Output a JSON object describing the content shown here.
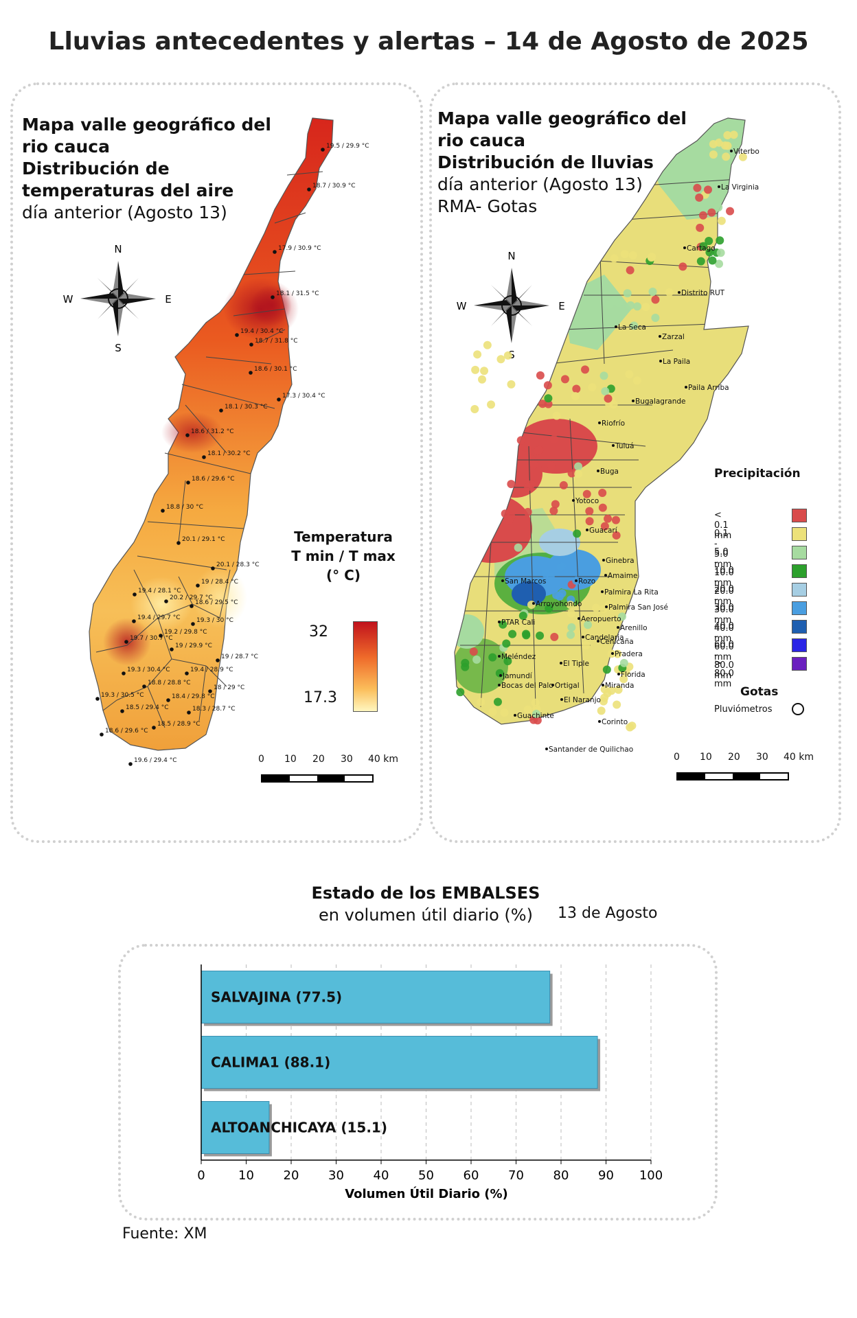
{
  "title": "Lluvias antecedentes y alertas – 14 de Agosto de 2025",
  "temp_panel": {
    "title_l1": "Mapa valle geográfico del",
    "title_l2": "rio cauca",
    "title_l3": "Distribución de",
    "title_l4": "temperaturas del aire",
    "subtitle": "día anterior (Agosto 13)",
    "compass": {
      "n": "N",
      "s": "S",
      "e": "E",
      "w": "W"
    },
    "legend": {
      "title_l1": "Temperatura",
      "title_l2": "T min / T max",
      "title_l3": "(° C)",
      "max": "32",
      "min": "17.3",
      "color_high": "#d7191c",
      "color_mid": "#fdae61",
      "color_low": "#ffffbf"
    },
    "scale": {
      "labels": [
        "0",
        "10",
        "20",
        "30",
        "40 km"
      ]
    },
    "stations": [
      "19.5 / 29.9 °C",
      "18.7 / 30.9 °C",
      "17.9 / 30.9 °C",
      "18.1 / 31.5 °C",
      "19.4 / 30.4 °C",
      "18.7 / 31.8 °C",
      "18.6 / 30.1 °C",
      "17.3 / 30.4 °C",
      "18.1 / 30.3 °C",
      "18.6 / 31.2 °C",
      "18.1 / 30.2 °C",
      "18.6 / 29.6 °C",
      "18.8 / 30 °C",
      "20.1 / 29.1 °C",
      "20.1 / 28.3 °C",
      "19 / 28.4 °C",
      "19.4 / 28.1 °C",
      "20.2 / 29.7 °C",
      "18.6 / 29.5 °C",
      "19.4 / 29.7 °C",
      "19.3 / 30 °C",
      "19.2 / 29.8 °C",
      "19.7 / 30.7 °C",
      "19 / 29.9 °C",
      "19 / 28.7 °C",
      "19.3 / 30.4 °C",
      "19.4 / 28.9 °C",
      "18.8 / 28.8 °C",
      "18 / 29 °C",
      "19.3 / 30.5 °C",
      "18.4 / 29.8 °C",
      "18.5 / 29.4 °C",
      "18.3 / 28.7 °C",
      "18.5 / 28.9 °C",
      "18.6 / 29.6 °C",
      "19.6 / 29.4 °C"
    ]
  },
  "rain_panel": {
    "title_l1": "Mapa valle geográfico del",
    "title_l2": "rio cauca",
    "title_l3": "Distribución de lluvias",
    "subtitle_l1": "día anterior (Agosto 13)",
    "subtitle_l2": "RMA- Gotas",
    "compass": {
      "n": "N",
      "s": "S",
      "e": "E",
      "w": "W"
    },
    "places": [
      "Viterbo",
      "La Virginia",
      "Cartago",
      "Distrito RUT",
      "La Seca",
      "Zarzal",
      "La Paila",
      "Paila Arriba",
      "Bugalagrande",
      "Riofrío",
      "Tuluá",
      "Buga",
      "Yotoco",
      "Guacarí",
      "Ginebra",
      "Amaime",
      "San Marcos",
      "Rozo",
      "Palmira La Rita",
      "Arroyohondo",
      "Palmira San José",
      "Aeropuerto",
      "Arenillo",
      "PTAR Cali",
      "Candelaria",
      "Cenicaña",
      "Pradera",
      "Meléndez",
      "El Tiple",
      "Florida",
      "Jamundí",
      "Bocas del Palo",
      "Ortigal",
      "Miranda",
      "El Naranjo",
      "Guachinte",
      "Corinto",
      "Santander de Quilichao"
    ],
    "legend": {
      "title": "Precipitación",
      "items": [
        {
          "label": "< 0.1 mm",
          "color": "#d94b4b"
        },
        {
          "label": "0.1 - 5.0 mm",
          "color": "#ece17a"
        },
        {
          "label": "5.0 - 10.0 mm",
          "color": "#a6dba0"
        },
        {
          "label": "10.0 - 20.0 mm",
          "color": "#2ca02c"
        },
        {
          "label": "20.0 - 30.0 mm",
          "color": "#a6cee3"
        },
        {
          "label": "30.0 - 40.0 mm",
          "color": "#4a9ee0"
        },
        {
          "label": "40.0 - 60.0 mm",
          "color": "#1f5fb0"
        },
        {
          "label": "60.0 - 80.0 mm",
          "color": "#2a24e6"
        },
        {
          "label": "> 80.0 mm",
          "color": "#6a1fbf"
        }
      ],
      "gotas_title": "Gotas",
      "gotas_label": "Pluviómetros"
    },
    "scale": {
      "labels": [
        "0",
        "10",
        "20",
        "30",
        "40 km"
      ]
    }
  },
  "reservoirs": {
    "title_bold": "Estado de los EMBALSES",
    "title_normal": "en volumen útil diario (%)",
    "date": "13 de Agosto",
    "source": "Fuente: XM"
  },
  "chart_data": {
    "type": "bar",
    "orientation": "horizontal",
    "title": "Estado de los EMBALSES en volumen útil diario (%)",
    "xlabel": "Volumen Útil Diario (%)",
    "categories": [
      "SALVAJINA (77.5)",
      "CALIMA1 (88.1)",
      "ALTOANCHICAYA (15.1)"
    ],
    "values": [
      77.5,
      88.1,
      15.1
    ],
    "xlim": [
      0,
      100
    ],
    "xticks": [
      "0",
      "10",
      "20",
      "30",
      "40",
      "50",
      "60",
      "70",
      "80",
      "90",
      "100"
    ],
    "grid": "vertical dashed",
    "bar_color": "#56bcd9"
  }
}
